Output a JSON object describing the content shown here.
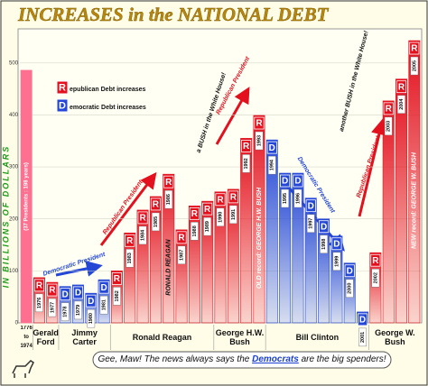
{
  "chart_data": {
    "type": "bar",
    "title": "INCREASES in the NATIONAL DEBT",
    "y_label": "IN BILLIONS OF DOLLARS",
    "ylim": [
      0,
      550
    ],
    "yticks": [
      0,
      100,
      200,
      300,
      400,
      500
    ],
    "party_colors": {
      "R": "#e3101e",
      "D": "#2447d6"
    },
    "legend": [
      {
        "letter": "R",
        "text": "epublican Debt increases"
      },
      {
        "letter": "D",
        "text": "emocratic Debt increases"
      }
    ],
    "groups": [
      {
        "name": "1776 to 1974",
        "color": "#ff7090",
        "categories": [
          "(37 Presidents : 198 years)"
        ],
        "values": [
          486
        ]
      },
      {
        "name": "Gerald Ford",
        "party": "R",
        "categories": [
          "1976",
          "1977"
        ],
        "values": [
          87,
          78
        ]
      },
      {
        "name": "Jimmy Carter",
        "party": "D",
        "categories": [
          "1978",
          "1979",
          "1980",
          "1981"
        ],
        "values": [
          70,
          73,
          57,
          83
        ]
      },
      {
        "name": "Ronald Reagan",
        "party": "R",
        "categories": [
          "1982",
          "1983",
          "1984",
          "1985",
          "1986",
          "1987",
          "1988",
          "1989"
        ],
        "values": [
          100,
          173,
          217,
          243,
          286,
          179,
          225,
          234
        ]
      },
      {
        "name": "George H.W. Bush",
        "party": "R",
        "categories": [
          "1990",
          "1991",
          "1992",
          "1993"
        ],
        "values": [
          252,
          257,
          355,
          399
        ]
      },
      {
        "name": "Bill Clinton",
        "party": "D",
        "categories": [
          "1994",
          "1995",
          "1996",
          "1997",
          "1998",
          "1999",
          "2000",
          "2001"
        ],
        "values": [
          352,
          288,
          288,
          240,
          200,
          167,
          115,
          21
        ]
      },
      {
        "name": "George W. Bush",
        "party": "R",
        "categories": [
          "2002",
          "2003",
          "2004",
          "2005"
        ],
        "values": [
          135,
          427,
          469,
          543
        ]
      }
    ],
    "annotations": [
      "Democratic President",
      "Republican President",
      "a BUSH in the White House!",
      "Republican President",
      "Democratic President",
      "another BUSH in the White House!",
      "Republican President",
      "RONALD REAGAN",
      "OLD record: GEORGE H.W. BUSH",
      "NEW record: GEORGE W. BUSH"
    ],
    "caption": {
      "before": "Gee, Maw! The news always says the ",
      "emphasis": "Democrats",
      "after": " are the big spenders!"
    }
  }
}
